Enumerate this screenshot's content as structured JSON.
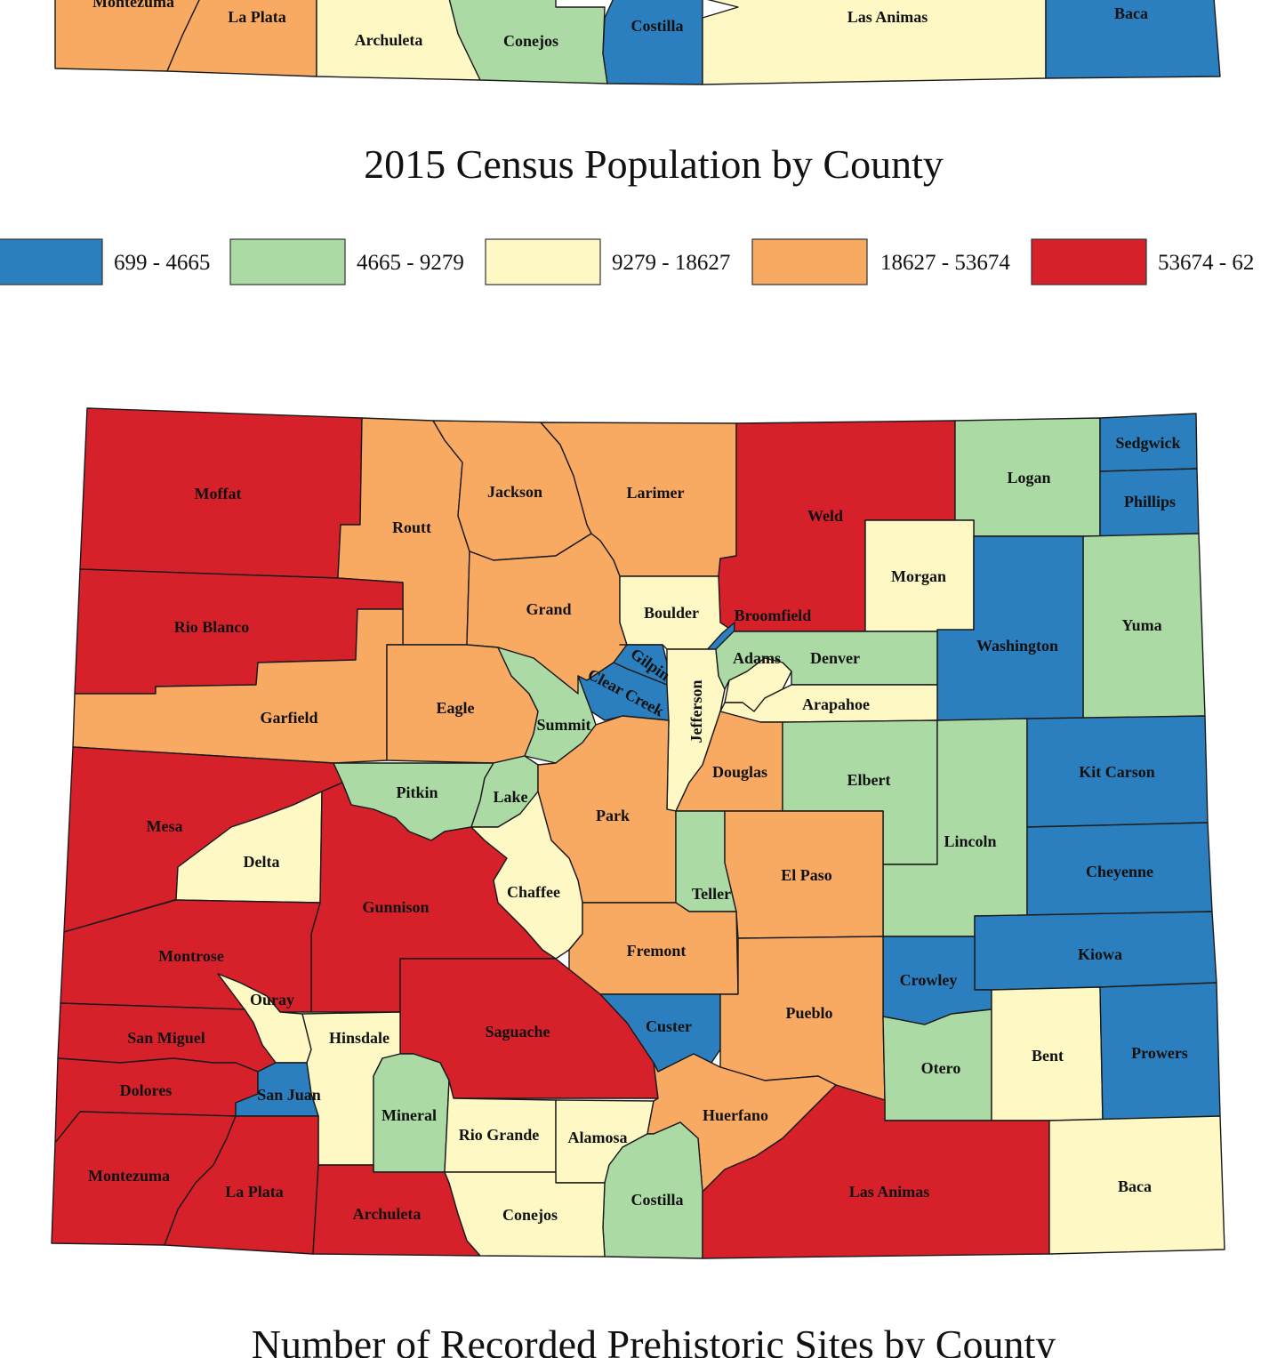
{
  "colors": {
    "blue": "#2b7fbe",
    "green": "#abdaa4",
    "cream": "#fdf8c4",
    "orange": "#f8a962",
    "red": "#d6202a"
  },
  "top_map": {
    "counties": [
      {
        "name": "Montezuma",
        "cls": "orange"
      },
      {
        "name": "La Plata",
        "cls": "orange"
      },
      {
        "name": "Archuleta",
        "cls": "cream"
      },
      {
        "name": "Conejos",
        "cls": "green"
      },
      {
        "name": "Costilla",
        "cls": "blue"
      },
      {
        "name": "Las Animas",
        "cls": "cream"
      },
      {
        "name": "Baca",
        "cls": "blue"
      }
    ]
  },
  "title_population": "2015 Census Population by County",
  "legend": [
    {
      "cls": "blue",
      "label": "699 - 4665"
    },
    {
      "cls": "green",
      "label": "4665 - 9279"
    },
    {
      "cls": "cream",
      "label": "9279 - 18627"
    },
    {
      "cls": "orange",
      "label": "18627 - 53674"
    },
    {
      "cls": "red",
      "label": "53674 - 62"
    }
  ],
  "sites_map": {
    "counties": [
      {
        "name": "Moffat",
        "cls": "red"
      },
      {
        "name": "Routt",
        "cls": "orange"
      },
      {
        "name": "Jackson",
        "cls": "orange"
      },
      {
        "name": "Larimer",
        "cls": "orange"
      },
      {
        "name": "Weld",
        "cls": "red"
      },
      {
        "name": "Logan",
        "cls": "green"
      },
      {
        "name": "Sedgwick",
        "cls": "blue"
      },
      {
        "name": "Phillips",
        "cls": "blue"
      },
      {
        "name": "Rio Blanco",
        "cls": "red"
      },
      {
        "name": "Grand",
        "cls": "orange"
      },
      {
        "name": "Boulder",
        "cls": "cream"
      },
      {
        "name": "Broomfield",
        "cls": "blue"
      },
      {
        "name": "Morgan",
        "cls": "cream"
      },
      {
        "name": "Yuma",
        "cls": "green"
      },
      {
        "name": "Washington",
        "cls": "blue"
      },
      {
        "name": "Garfield",
        "cls": "orange"
      },
      {
        "name": "Eagle",
        "cls": "orange"
      },
      {
        "name": "Gilpin",
        "cls": "blue"
      },
      {
        "name": "Clear Creek",
        "cls": "blue"
      },
      {
        "name": "Summit",
        "cls": "green"
      },
      {
        "name": "Jefferson",
        "cls": "cream"
      },
      {
        "name": "Denver",
        "cls": "green"
      },
      {
        "name": "Adams",
        "cls": "cream"
      },
      {
        "name": "Arapahoe",
        "cls": "cream"
      },
      {
        "name": "Mesa",
        "cls": "red"
      },
      {
        "name": "Delta",
        "cls": "cream"
      },
      {
        "name": "Pitkin",
        "cls": "green"
      },
      {
        "name": "Lake",
        "cls": "green"
      },
      {
        "name": "Park",
        "cls": "orange"
      },
      {
        "name": "Douglas",
        "cls": "orange"
      },
      {
        "name": "Elbert",
        "cls": "green"
      },
      {
        "name": "Lincoln",
        "cls": "green"
      },
      {
        "name": "Kit Carson",
        "cls": "blue"
      },
      {
        "name": "Gunnison",
        "cls": "red"
      },
      {
        "name": "Chaffee",
        "cls": "cream"
      },
      {
        "name": "Teller",
        "cls": "green"
      },
      {
        "name": "El Paso",
        "cls": "orange"
      },
      {
        "name": "Cheyenne",
        "cls": "blue"
      },
      {
        "name": "Montrose",
        "cls": "red"
      },
      {
        "name": "Fremont",
        "cls": "orange"
      },
      {
        "name": "Kiowa",
        "cls": "blue"
      },
      {
        "name": "Crowley",
        "cls": "blue"
      },
      {
        "name": "Ouray",
        "cls": "cream"
      },
      {
        "name": "Saguache",
        "cls": "red"
      },
      {
        "name": "Custer",
        "cls": "blue"
      },
      {
        "name": "Pueblo",
        "cls": "orange"
      },
      {
        "name": "San Miguel",
        "cls": "red"
      },
      {
        "name": "Hinsdale",
        "cls": "cream"
      },
      {
        "name": "Otero",
        "cls": "green"
      },
      {
        "name": "Bent",
        "cls": "cream"
      },
      {
        "name": "Prowers",
        "cls": "blue"
      },
      {
        "name": "Dolores",
        "cls": "red"
      },
      {
        "name": "San Juan",
        "cls": "blue"
      },
      {
        "name": "Mineral",
        "cls": "green"
      },
      {
        "name": "Rio Grande",
        "cls": "cream"
      },
      {
        "name": "Alamosa",
        "cls": "cream"
      },
      {
        "name": "Huerfano",
        "cls": "orange"
      },
      {
        "name": "Costilla",
        "cls": "green"
      },
      {
        "name": "Montezuma",
        "cls": "red"
      },
      {
        "name": "La Plata",
        "cls": "red"
      },
      {
        "name": "Archuleta",
        "cls": "red"
      },
      {
        "name": "Conejos",
        "cls": "cream"
      },
      {
        "name": "Las Animas",
        "cls": "red"
      },
      {
        "name": "Baca",
        "cls": "cream"
      }
    ]
  },
  "title_sites": "Number of Recorded Prehistoric Sites by County"
}
